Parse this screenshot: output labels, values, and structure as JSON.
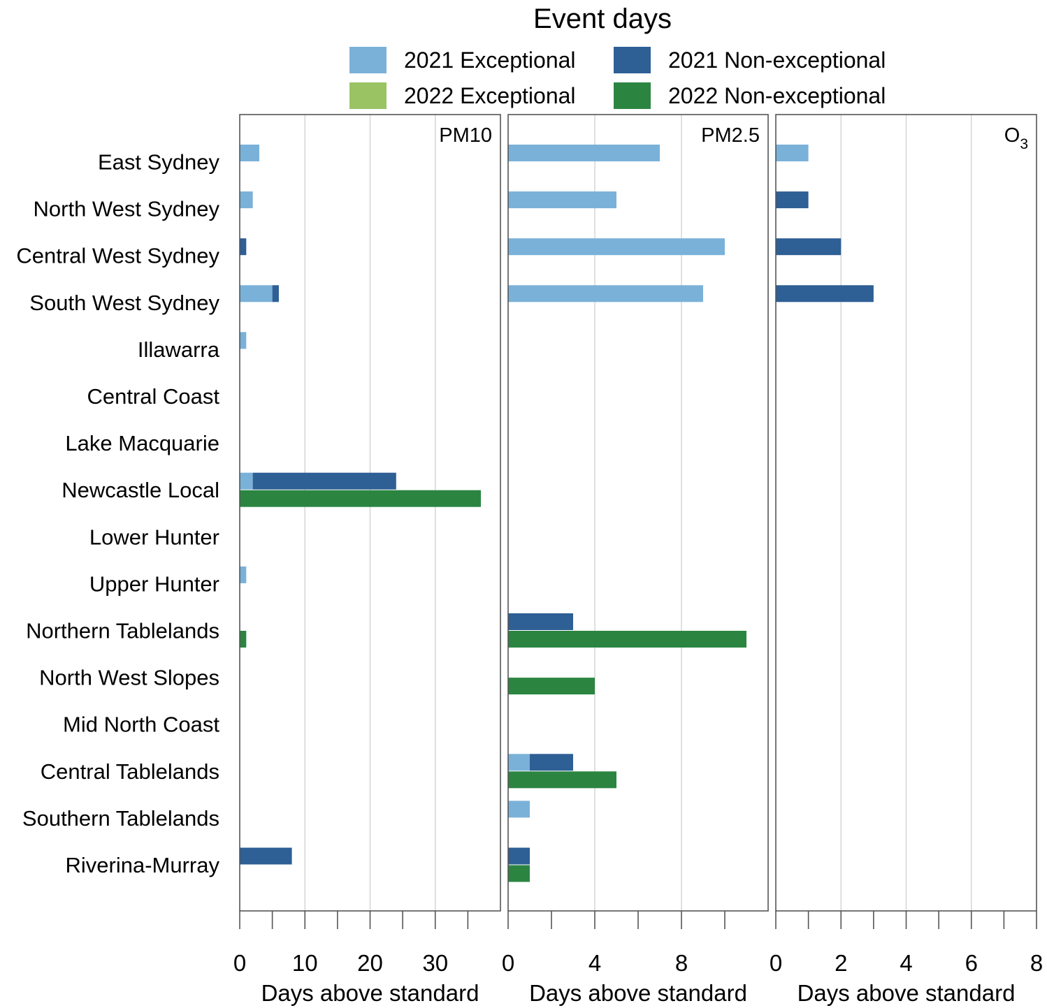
{
  "chart_data": {
    "type": "bar",
    "orientation": "horizontal",
    "title": "Event days",
    "legend": [
      {
        "label": "2021 Exceptional",
        "color": "#7ab1d9"
      },
      {
        "label": "2021 Non-exceptional",
        "color": "#2e5f95"
      },
      {
        "label": "2022 Exceptional",
        "color": "#9ac464"
      },
      {
        "label": "2022 Non-exceptional",
        "color": "#2b8541"
      }
    ],
    "categories": [
      "East Sydney",
      "North West Sydney",
      "Central West Sydney",
      "South West Sydney",
      "Illawarra",
      "Central Coast",
      "Lake Macquarie",
      "Newcastle Local",
      "Lower Hunter",
      "Upper Hunter",
      "Northern Tablelands",
      "North West Slopes",
      "Mid North Coast",
      "Central Tablelands",
      "Southern Tablelands",
      "Riverina-Murray"
    ],
    "panels": [
      {
        "name": "PM10",
        "label": "PM10",
        "xlabel": "Days above standard",
        "xlim": [
          0,
          40
        ],
        "ticks": [
          0,
          10,
          20,
          30
        ],
        "minor_ticks": [
          5,
          15,
          25,
          35
        ],
        "series": {
          "2021 Exceptional": [
            3,
            2,
            0,
            5,
            1,
            0,
            0,
            2,
            0,
            1,
            0,
            0,
            0,
            0,
            0,
            0
          ],
          "2021 Non-exceptional": [
            0,
            0,
            1,
            1,
            0,
            0,
            0,
            22,
            0,
            0,
            0,
            0,
            0,
            0,
            0,
            8
          ],
          "2022 Exceptional": [
            0,
            0,
            0,
            0,
            0,
            0,
            0,
            0,
            0,
            0,
            0,
            0,
            0,
            0,
            0,
            0
          ],
          "2022 Non-exceptional": [
            0,
            0,
            0,
            0,
            0,
            0,
            0,
            37,
            0,
            0,
            1,
            0,
            0,
            0,
            0,
            0
          ]
        }
      },
      {
        "name": "PM2.5",
        "label": "PM2.5",
        "xlabel": "Days above standard",
        "xlim": [
          0,
          12
        ],
        "ticks": [
          0,
          4,
          8
        ],
        "minor_ticks": [
          2,
          6,
          10
        ],
        "series": {
          "2021 Exceptional": [
            7,
            5,
            10,
            9,
            0,
            0,
            0,
            0,
            0,
            0,
            0,
            0,
            0,
            1,
            1,
            0
          ],
          "2021 Non-exceptional": [
            0,
            0,
            0,
            0,
            0,
            0,
            0,
            0,
            0,
            0,
            3,
            0,
            0,
            2,
            0,
            1
          ],
          "2022 Exceptional": [
            0,
            0,
            0,
            0,
            0,
            0,
            0,
            0,
            0,
            0,
            0,
            0,
            0,
            0,
            0,
            0
          ],
          "2022 Non-exceptional": [
            0,
            0,
            0,
            0,
            0,
            0,
            0,
            0,
            0,
            0,
            11,
            4,
            0,
            5,
            0,
            1
          ]
        }
      },
      {
        "name": "O3",
        "label": {
          "main": "O",
          "sub": "3"
        },
        "xlabel": "Days above standard",
        "xlim": [
          0,
          8
        ],
        "ticks": [
          0,
          2,
          4,
          6,
          8
        ],
        "minor_ticks": [
          1,
          3,
          5,
          7
        ],
        "series": {
          "2021 Exceptional": [
            1,
            0,
            0,
            0,
            0,
            0,
            0,
            0,
            0,
            0,
            0,
            0,
            0,
            0,
            0,
            0
          ],
          "2021 Non-exceptional": [
            0,
            1,
            2,
            3,
            0,
            0,
            0,
            0,
            0,
            0,
            0,
            0,
            0,
            0,
            0,
            0
          ],
          "2022 Exceptional": [
            0,
            0,
            0,
            0,
            0,
            0,
            0,
            0,
            0,
            0,
            0,
            0,
            0,
            0,
            0,
            0
          ],
          "2022 Non-exceptional": [
            0,
            0,
            0,
            0,
            0,
            0,
            0,
            0,
            0,
            0,
            0,
            0,
            0,
            0,
            0,
            0
          ]
        }
      }
    ]
  }
}
